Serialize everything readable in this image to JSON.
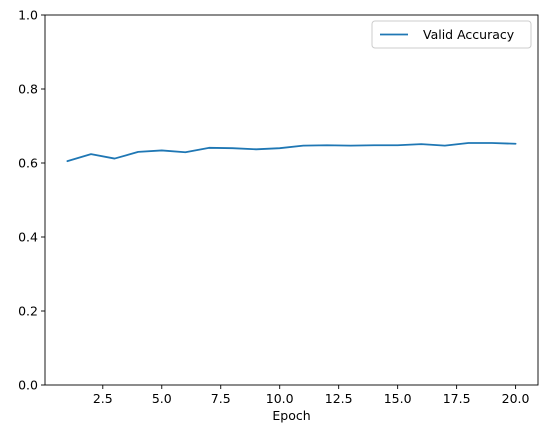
{
  "chart_data": {
    "type": "line",
    "title": "",
    "xlabel": "Epoch",
    "ylabel": "",
    "xlim": [
      0.05,
      20.95
    ],
    "ylim": [
      0,
      1
    ],
    "x_ticks": [
      2.5,
      5.0,
      7.5,
      10.0,
      12.5,
      15.0,
      17.5,
      20.0
    ],
    "x_tick_labels": [
      "2.5",
      "5.0",
      "7.5",
      "10.0",
      "12.5",
      "15.0",
      "17.5",
      "20.0"
    ],
    "y_ticks": [
      0.0,
      0.2,
      0.4,
      0.6,
      0.8,
      1.0
    ],
    "y_tick_labels": [
      "0.0",
      "0.2",
      "0.4",
      "0.6",
      "0.8",
      "1.0"
    ],
    "grid": false,
    "legend_position": "top-right",
    "x": [
      1,
      2,
      3,
      4,
      5,
      6,
      7,
      8,
      9,
      10,
      11,
      12,
      13,
      14,
      15,
      16,
      17,
      18,
      19,
      20
    ],
    "series": [
      {
        "name": "Valid Accuracy",
        "color": "#1f77b4",
        "values": [
          0.605,
          0.624,
          0.612,
          0.63,
          0.634,
          0.629,
          0.641,
          0.64,
          0.637,
          0.64,
          0.647,
          0.648,
          0.647,
          0.648,
          0.648,
          0.651,
          0.647,
          0.654,
          0.654,
          0.652
        ]
      }
    ]
  }
}
